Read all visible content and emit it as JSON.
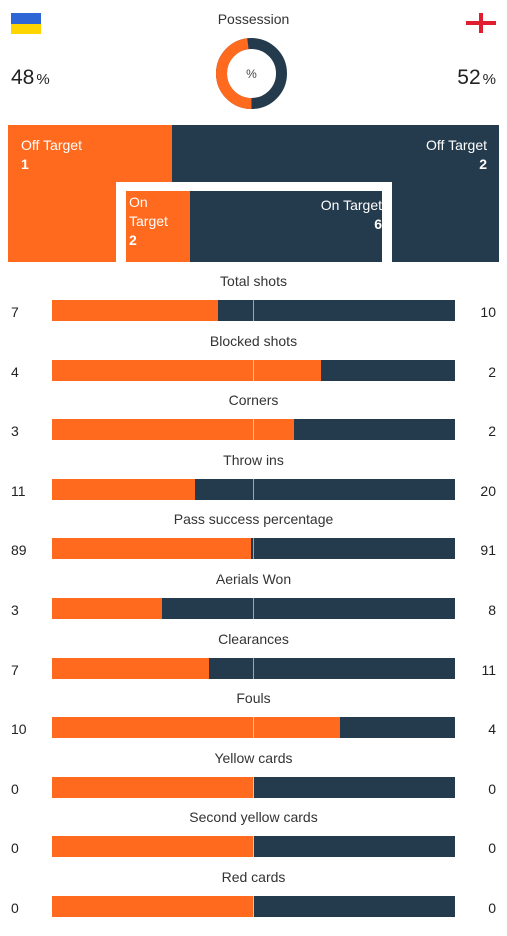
{
  "colors": {
    "home": "#ff6a1f",
    "away": "#243a4d"
  },
  "possession": {
    "label": "Possession",
    "center_symbol": "%",
    "home_value": "48",
    "away_value": "52",
    "percent_sign": "%",
    "home_fraction": 0.48
  },
  "teams": {
    "home_flag": "ukraine-flag-icon",
    "away_flag": "england-flag-icon"
  },
  "shots_map": {
    "home_off_label": "Off Target",
    "home_off_value": "1",
    "away_off_label": "Off Target",
    "away_off_value": "2",
    "home_on_label_1": "On",
    "home_on_label_2": "Target",
    "home_on_value": "2",
    "away_on_label": "On Target",
    "away_on_value": "6"
  },
  "stats": [
    {
      "title": "Total shots",
      "home": "7",
      "away": "10",
      "home_fraction": 0.412
    },
    {
      "title": "Blocked shots",
      "home": "4",
      "away": "2",
      "home_fraction": 0.667
    },
    {
      "title": "Corners",
      "home": "3",
      "away": "2",
      "home_fraction": 0.6
    },
    {
      "title": "Throw ins",
      "home": "11",
      "away": "20",
      "home_fraction": 0.355
    },
    {
      "title": "Pass success percentage",
      "home": "89",
      "away": "91",
      "home_fraction": 0.494
    },
    {
      "title": "Aerials Won",
      "home": "3",
      "away": "8",
      "home_fraction": 0.273
    },
    {
      "title": "Clearances",
      "home": "7",
      "away": "11",
      "home_fraction": 0.389
    },
    {
      "title": "Fouls",
      "home": "10",
      "away": "4",
      "home_fraction": 0.714
    },
    {
      "title": "Yellow cards",
      "home": "0",
      "away": "0",
      "home_fraction": 0.5
    },
    {
      "title": "Second yellow cards",
      "home": "0",
      "away": "0",
      "home_fraction": 0.5
    },
    {
      "title": "Red cards",
      "home": "0",
      "away": "0",
      "home_fraction": 0.5
    }
  ]
}
